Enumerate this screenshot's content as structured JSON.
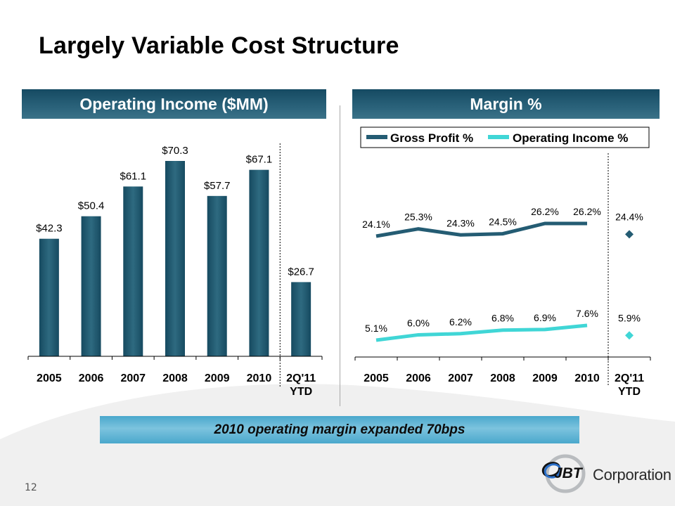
{
  "slide": {
    "title": "Largely Variable Cost Structure",
    "page_number": "12",
    "callout": "2010 operating margin expanded 70bps",
    "logo": {
      "mark": "JBT",
      "text": "Corporation"
    }
  },
  "colors": {
    "bar": "#1e5870",
    "gross_profit_line": "#245c73",
    "operating_income_line": "#40d6d6",
    "header_bg": "#1f5870",
    "callout_bg": "#5ab2d4"
  },
  "chart_data": [
    {
      "type": "bar",
      "title": "Operating Income ($MM)",
      "categories": [
        "2005",
        "2006",
        "2007",
        "2008",
        "2009",
        "2010",
        "2Q'11 YTD"
      ],
      "category_lines": [
        [
          "2005"
        ],
        [
          "2006"
        ],
        [
          "2007"
        ],
        [
          "2008"
        ],
        [
          "2009"
        ],
        [
          "2010"
        ],
        [
          "2Q'11",
          "YTD"
        ]
      ],
      "values": [
        42.3,
        50.4,
        61.1,
        70.3,
        57.7,
        67.1,
        26.7
      ],
      "data_labels": [
        "$42.3",
        "$50.4",
        "$61.1",
        "$70.3",
        "$57.7",
        "$67.1",
        "$26.7"
      ],
      "xlabel": "",
      "ylabel": "",
      "ylim": [
        0,
        70.3
      ],
      "grid": false,
      "separator_before_category": "2Q'11 YTD"
    },
    {
      "type": "line",
      "title": "Margin %",
      "categories": [
        "2005",
        "2006",
        "2007",
        "2008",
        "2009",
        "2010",
        "2Q'11 YTD"
      ],
      "category_lines": [
        [
          "2005"
        ],
        [
          "2006"
        ],
        [
          "2007"
        ],
        [
          "2008"
        ],
        [
          "2009"
        ],
        [
          "2010"
        ],
        [
          "2Q'11",
          "YTD"
        ]
      ],
      "legend": {
        "placement": "top",
        "entries": [
          "Gross Profit %",
          "Operating Income %"
        ]
      },
      "series": [
        {
          "name": "Gross Profit %",
          "values": [
            24.1,
            25.3,
            24.3,
            24.5,
            26.2,
            26.2,
            24.4
          ],
          "data_labels": [
            "24.1%",
            "25.3%",
            "24.3%",
            "24.5%",
            "26.2%",
            "26.2%",
            "24.4%"
          ],
          "line_through_index": 5,
          "last_point_marker": "diamond"
        },
        {
          "name": "Operating Income %",
          "values": [
            5.1,
            6.0,
            6.2,
            6.8,
            6.9,
            7.6,
            5.9
          ],
          "data_labels": [
            "5.1%",
            "6.0%",
            "6.2%",
            "6.8%",
            "6.9%",
            "7.6%",
            "5.9%"
          ],
          "line_through_index": 5,
          "last_point_marker": "diamond"
        }
      ],
      "xlabel": "",
      "ylabel": "",
      "grid": false,
      "separator_before_category": "2Q'11 YTD"
    }
  ]
}
